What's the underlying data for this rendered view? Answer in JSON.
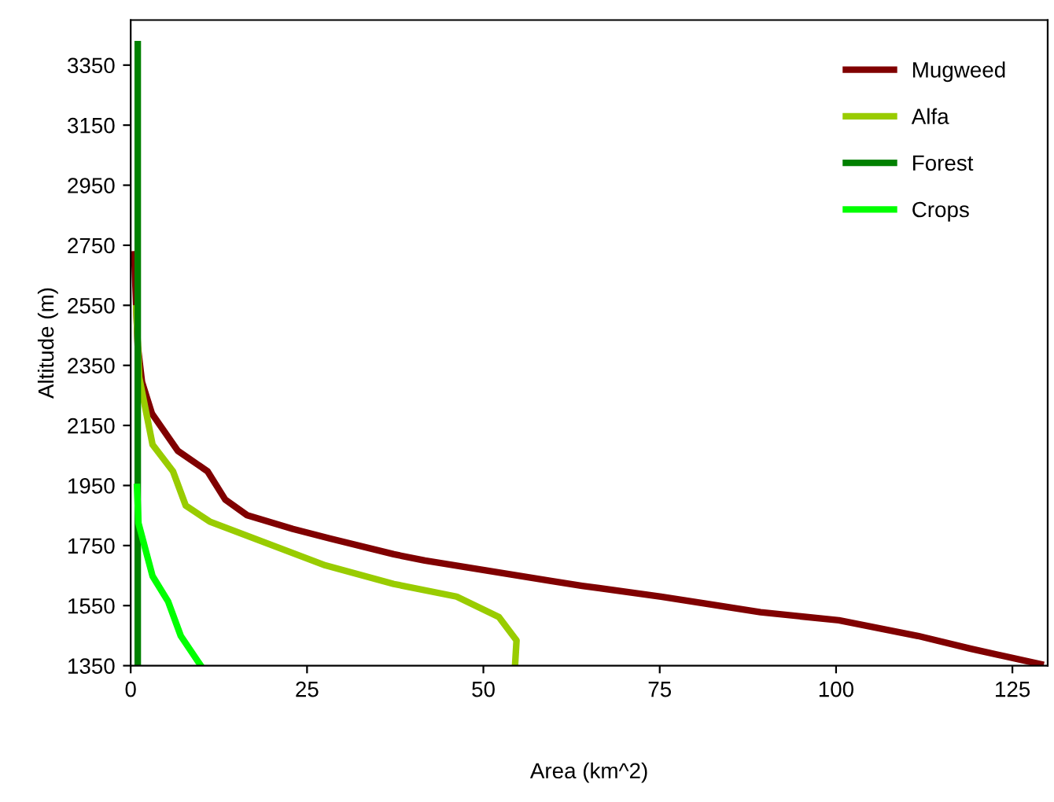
{
  "chart_data": {
    "type": "line",
    "xlabel": "Area (km^2)",
    "ylabel": "Altitude (m)",
    "xlim": [
      0,
      130
    ],
    "xticks": [
      0,
      25,
      50,
      75,
      100,
      125
    ],
    "ylim": [
      1350,
      3500
    ],
    "yticks": [
      1350,
      1550,
      1750,
      1950,
      2150,
      2350,
      2550,
      2750,
      2950,
      3150,
      3350
    ],
    "grid": false,
    "legend": "top right",
    "marker": "none",
    "line_style": "solid",
    "series": [
      {
        "name": "Mugweed",
        "color": "#800000",
        "x": [
          0.5,
          1,
          1.6,
          3,
          6.7,
          10.9,
          13.4,
          16.5,
          23,
          28.3,
          37.3,
          41.7,
          59.6,
          64,
          75.2,
          89.3,
          100.4,
          111.6,
          119,
          129
        ],
        "values": [
          2720,
          2415,
          2295,
          2190,
          2065,
          1997,
          1903,
          1851,
          1805,
          1773,
          1721,
          1700,
          1632,
          1616,
          1580,
          1528,
          1501,
          1449,
          1407,
          1355
        ]
      },
      {
        "name": "Alfa",
        "color": "#99cc00",
        "x": [
          0.8,
          1.2,
          3.1,
          6,
          7.8,
          11.2,
          18.7,
          27.6,
          37.3,
          46.2,
          52.2,
          54.7,
          54.5
        ],
        "values": [
          2540,
          2311,
          2086,
          1997,
          1883,
          1830,
          1763,
          1684,
          1622,
          1580,
          1512,
          1434,
          1355
        ]
      },
      {
        "name": "Forest",
        "color": "#008000",
        "x": [
          1,
          1
        ],
        "values": [
          1350,
          3420
        ]
      },
      {
        "name": "Crops",
        "color": "#00ff00",
        "x": [
          0.9,
          1.1,
          3.1,
          5.3,
          7.1,
          9.8
        ],
        "values": [
          1945,
          1825,
          1648,
          1564,
          1449,
          1355
        ]
      }
    ]
  }
}
